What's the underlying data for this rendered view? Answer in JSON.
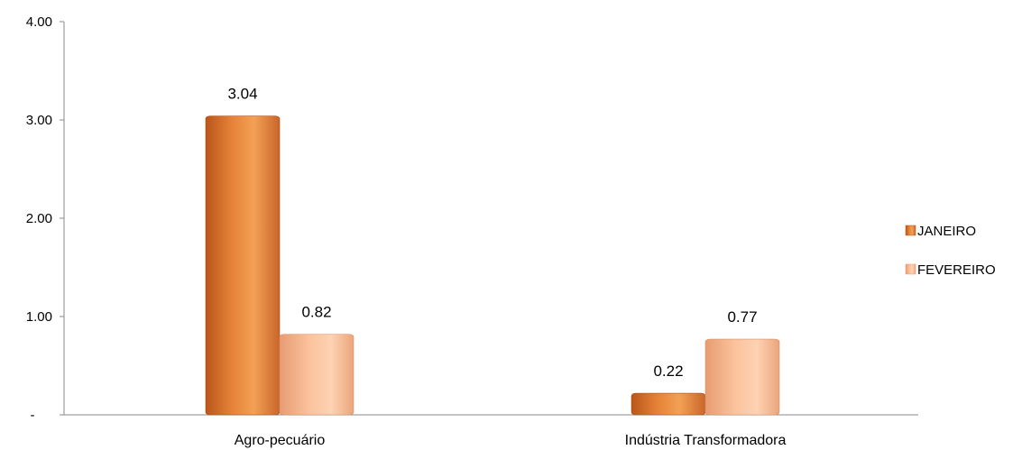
{
  "chart_data": {
    "type": "bar",
    "categories": [
      "Agro-pecuário",
      "Indústria Transformadora"
    ],
    "series": [
      {
        "name": "JANEIRO",
        "values": [
          3.04,
          0.22
        ],
        "labels": [
          "3.04",
          "0.22"
        ],
        "color": "#e8853a"
      },
      {
        "name": "FEVEREIRO",
        "values": [
          0.82,
          0.77
        ],
        "labels": [
          "0.82",
          "0.77"
        ],
        "color": "#f7b48a"
      }
    ],
    "yticks": [
      {
        "value": 0,
        "label": "-"
      },
      {
        "value": 1,
        "label": "1.00"
      },
      {
        "value": 2,
        "label": "2.00"
      },
      {
        "value": 3,
        "label": "3.00"
      },
      {
        "value": 4,
        "label": "4.00"
      }
    ],
    "ylim": [
      0,
      4
    ],
    "grid": false,
    "legend_position": "right"
  }
}
